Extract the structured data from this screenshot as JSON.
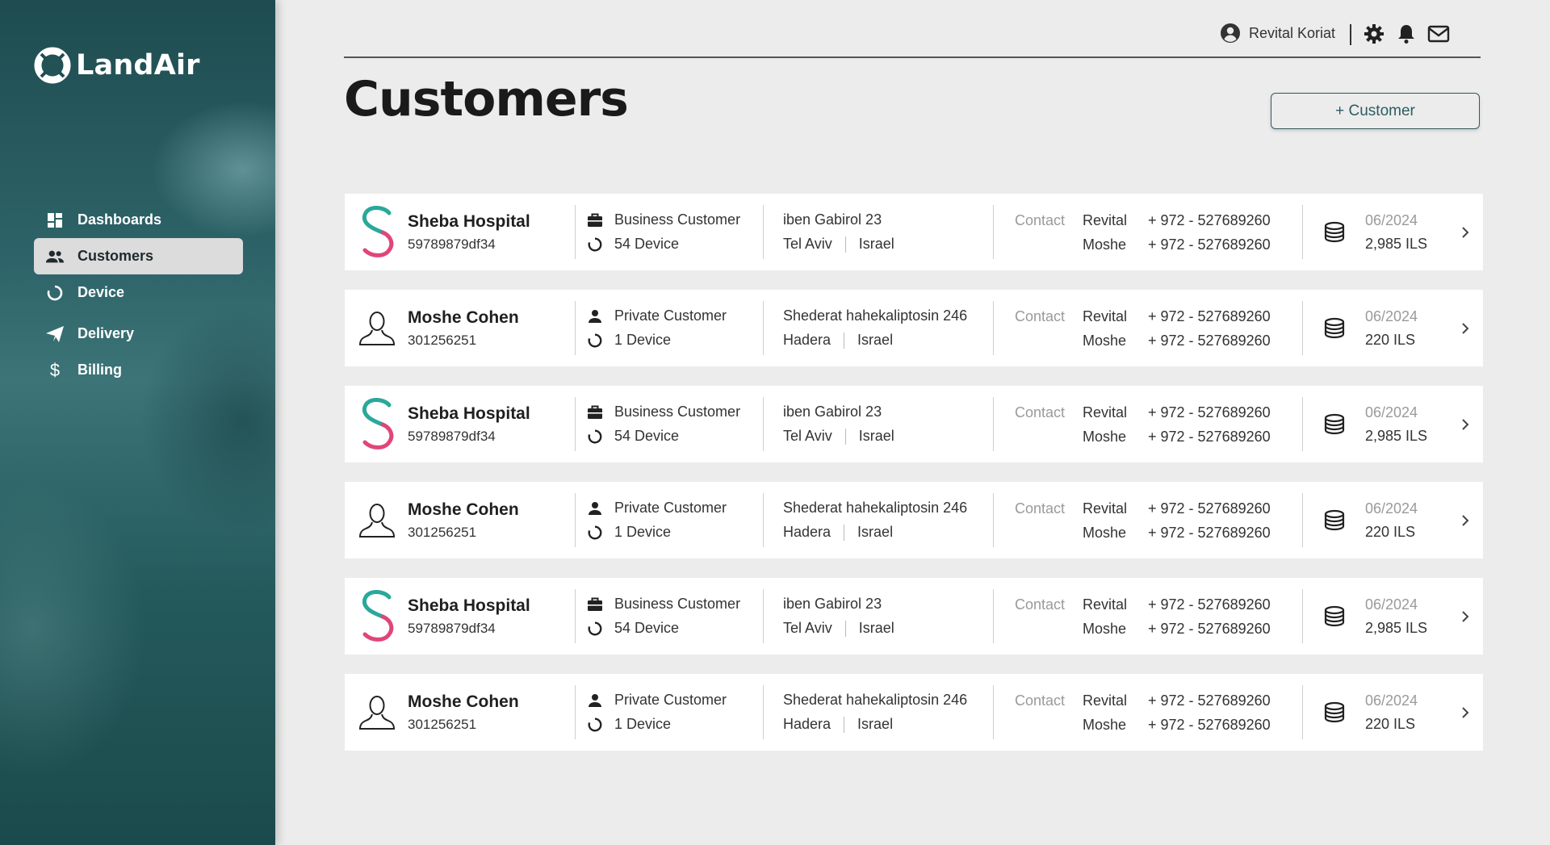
{
  "app": {
    "logo_text": "LandAir"
  },
  "sidebar": {
    "items": [
      {
        "label": "Dashboards",
        "icon": "dashboard-icon",
        "active": false
      },
      {
        "label": "Customers",
        "icon": "customers-icon",
        "active": true
      },
      {
        "label": "Device",
        "icon": "device-icon",
        "active": false
      },
      {
        "label": "Delivery",
        "icon": "delivery-icon",
        "active": false
      },
      {
        "label": "Billing",
        "icon": "billing-icon",
        "active": false
      }
    ]
  },
  "header": {
    "user_name": "Revital Koriat",
    "icons": [
      "settings-icon",
      "notification-bell-icon",
      "mail-icon"
    ]
  },
  "page": {
    "title": "Customers",
    "add_button_label": "+ Customer"
  },
  "customers": [
    {
      "avatar": "sheba-logo",
      "name": "Sheba Hospital",
      "id": "59789879df34",
      "type": "Business Customer",
      "devices": "54 Device",
      "street": "iben Gabirol 23",
      "city": "Tel Aviv",
      "country": "Israel",
      "contact_label": "Contact",
      "contact1_name": "Revital",
      "contact1_phone": "+ 972 - 527689260",
      "contact2_name": "Moshe",
      "contact2_phone": "+ 972 - 527689260",
      "billing_date": "06/2024",
      "billing_amount": "2,985 ILS"
    },
    {
      "avatar": "person-outline",
      "name": "Moshe Cohen",
      "id": "301256251",
      "type": "Private Customer",
      "devices": "1 Device",
      "street": "Shederat hahekaliptosin 246",
      "city": "Hadera",
      "country": "Israel",
      "contact_label": "Contact",
      "contact1_name": "Revital",
      "contact1_phone": "+ 972 - 527689260",
      "contact2_name": "Moshe",
      "contact2_phone": "+ 972 - 527689260",
      "billing_date": "06/2024",
      "billing_amount": "220 ILS"
    },
    {
      "avatar": "sheba-logo",
      "name": "Sheba Hospital",
      "id": "59789879df34",
      "type": "Business Customer",
      "devices": "54 Device",
      "street": "iben Gabirol 23",
      "city": "Tel Aviv",
      "country": "Israel",
      "contact_label": "Contact",
      "contact1_name": "Revital",
      "contact1_phone": "+ 972 - 527689260",
      "contact2_name": "Moshe",
      "contact2_phone": "+ 972 - 527689260",
      "billing_date": "06/2024",
      "billing_amount": "2,985 ILS"
    },
    {
      "avatar": "person-outline",
      "name": "Moshe Cohen",
      "id": "301256251",
      "type": "Private Customer",
      "devices": "1 Device",
      "street": "Shederat hahekaliptosin 246",
      "city": "Hadera",
      "country": "Israel",
      "contact_label": "Contact",
      "contact1_name": "Revital",
      "contact1_phone": "+ 972 - 527689260",
      "contact2_name": "Moshe",
      "contact2_phone": "+ 972 - 527689260",
      "billing_date": "06/2024",
      "billing_amount": "220 ILS"
    },
    {
      "avatar": "sheba-logo",
      "name": "Sheba Hospital",
      "id": "59789879df34",
      "type": "Business Customer",
      "devices": "54 Device",
      "street": "iben Gabirol 23",
      "city": "Tel Aviv",
      "country": "Israel",
      "contact_label": "Contact",
      "contact1_name": "Revital",
      "contact1_phone": "+ 972 - 527689260",
      "contact2_name": "Moshe",
      "contact2_phone": "+ 972 - 527689260",
      "billing_date": "06/2024",
      "billing_amount": "2,985 ILS"
    },
    {
      "avatar": "person-outline",
      "name": "Moshe Cohen",
      "id": "301256251",
      "type": "Private Customer",
      "devices": "1 Device",
      "street": "Shederat hahekaliptosin 246",
      "city": "Hadera",
      "country": "Israel",
      "contact_label": "Contact",
      "contact1_name": "Revital",
      "contact1_phone": "+ 972 - 527689260",
      "contact2_name": "Moshe",
      "contact2_phone": "+ 972 - 527689260",
      "billing_date": "06/2024",
      "billing_amount": "220 ILS"
    }
  ],
  "colors": {
    "accent": "#2d5d61",
    "sheba_teal": "#2aa89a",
    "sheba_pink": "#e0457b",
    "background": "#ececec"
  }
}
